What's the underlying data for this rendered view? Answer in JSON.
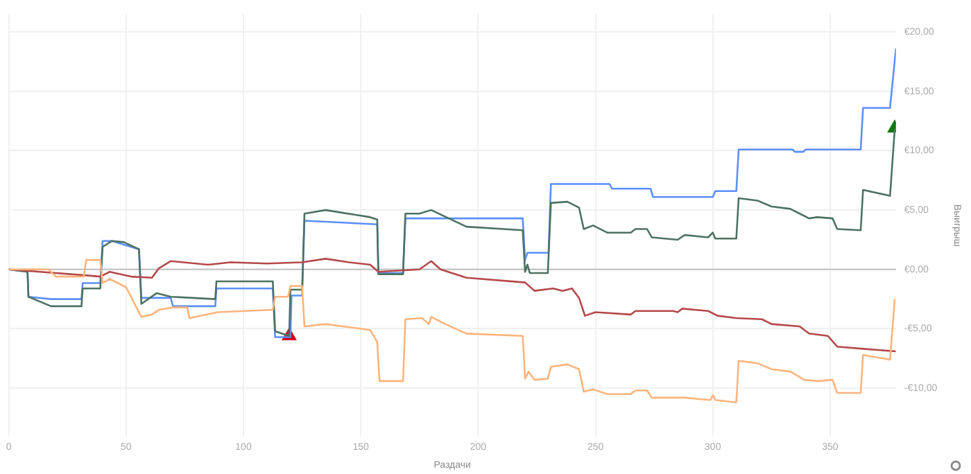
{
  "chart_data": {
    "type": "line",
    "xlabel": "Раздачи",
    "ylabel": "Выигрыш",
    "xlim": [
      0,
      378
    ],
    "xticks": [
      0,
      50,
      100,
      150,
      200,
      250,
      300,
      350
    ],
    "ylim": [
      -14.1,
      21.5
    ],
    "yticks": [
      {
        "value": -10,
        "label": "-€10,00"
      },
      {
        "value": -5,
        "label": "-€5,00"
      },
      {
        "value": 0,
        "label": "€0,00"
      },
      {
        "value": 5,
        "label": "€5,00"
      },
      {
        "value": 10,
        "label": "€10,00"
      },
      {
        "value": 15,
        "label": "€15,00"
      },
      {
        "value": 20,
        "label": "€20,00"
      }
    ],
    "grid": true,
    "legend": false,
    "marker": "none",
    "line_style": "solid",
    "ref_lines": [
      {
        "axis": "y",
        "value": 0,
        "color": "#c8c8c8"
      }
    ],
    "series": [
      {
        "color": "#fdb47c",
        "x": [
          0,
          17,
          20,
          32,
          33,
          39,
          40,
          43,
          50,
          56.5,
          61,
          64,
          70,
          76,
          77,
          89,
          112.5,
          113.5,
          119,
          120,
          125,
          126,
          135,
          154,
          157,
          158,
          168,
          169,
          176,
          179,
          180,
          186,
          195,
          219,
          220,
          221.5,
          224,
          229.7,
          231,
          238,
          243,
          245,
          249,
          255,
          265,
          267,
          272,
          274,
          285,
          288,
          299,
          300,
          301,
          310,
          311,
          319,
          325,
          333,
          339,
          345,
          351,
          353,
          363,
          364,
          375.5,
          377.5
        ],
        "values": [
          0,
          0,
          -0.6,
          -0.6,
          0.8,
          0.8,
          -1.15,
          -0.8,
          -1.5,
          -4.0,
          -3.8,
          -3.4,
          -3.2,
          -3.2,
          -4.1,
          -3.6,
          -3.4,
          -2.3,
          -2.3,
          -1.4,
          -1.4,
          -4.8,
          -4.6,
          -5.1,
          -6.1,
          -9.4,
          -9.4,
          -4.2,
          -4.1,
          -4.6,
          -4.0,
          -4.6,
          -5.4,
          -5.6,
          -9.2,
          -8.6,
          -9.3,
          -9.2,
          -8.2,
          -8.0,
          -8.4,
          -10.3,
          -10.1,
          -10.5,
          -10.5,
          -10.2,
          -10.2,
          -10.8,
          -10.8,
          -10.8,
          -11.0,
          -10.6,
          -11.0,
          -11.2,
          -7.7,
          -7.9,
          -8.4,
          -8.6,
          -9.3,
          -9.4,
          -9.3,
          -10.4,
          -10.4,
          -7.2,
          -7.6,
          -2.5
        ]
      },
      {
        "color": "#b5484a",
        "x": [
          0,
          33,
          39,
          43,
          52,
          61,
          64,
          69,
          85,
          94.5,
          110,
          125,
          135,
          145,
          154,
          157.5,
          175,
          180,
          184,
          195,
          220,
          224,
          232,
          236,
          240,
          243,
          245.5,
          250,
          265,
          267,
          283,
          285,
          287,
          298,
          302,
          310,
          321,
          325,
          337,
          341,
          349,
          353,
          365,
          378
        ],
        "values": [
          0,
          -0.5,
          -0.6,
          -0.2,
          -0.6,
          -0.7,
          0.1,
          0.7,
          0.4,
          0.6,
          0.5,
          0.6,
          0.9,
          0.6,
          0.4,
          -0.2,
          0,
          0.7,
          0,
          -0.7,
          -1.1,
          -1.8,
          -1.6,
          -1.8,
          -1.6,
          -2.4,
          -3.9,
          -3.6,
          -3.8,
          -3.5,
          -3.5,
          -3.6,
          -3.3,
          -3.5,
          -3.9,
          -4.1,
          -4.2,
          -4.6,
          -4.8,
          -5.4,
          -5.6,
          -6.5,
          -6.7,
          -6.9
        ]
      },
      {
        "color": "#4d7262",
        "x": [
          0,
          8,
          8.4,
          18,
          31,
          31.5,
          39,
          40,
          44,
          49,
          55.5,
          56.5,
          63,
          69,
          88,
          88.5,
          112.5,
          113.5,
          119.5,
          120,
          125,
          126,
          135,
          154,
          157,
          157.5,
          168,
          169,
          175,
          180,
          195,
          219,
          220,
          221,
          222,
          229.7,
          231,
          238,
          243,
          245,
          249,
          255,
          265,
          267,
          272,
          274,
          285,
          288,
          298,
          300,
          301,
          310,
          311,
          319,
          325,
          333,
          337,
          341,
          344.5,
          351,
          353,
          363,
          364,
          375.5,
          377.5
        ],
        "values": [
          0,
          -0.2,
          -2.3,
          -3.1,
          -3.1,
          -1.6,
          -1.6,
          1.9,
          2.4,
          2.3,
          1.7,
          -2.9,
          -2.0,
          -2.3,
          -2.5,
          -1.0,
          -1.0,
          -5.2,
          -5.6,
          -1.7,
          -1.7,
          4.7,
          5.0,
          4.4,
          4.2,
          -0.4,
          -0.4,
          4.7,
          4.7,
          5.0,
          3.6,
          3.3,
          -0.2,
          0.4,
          -0.3,
          -0.3,
          5.6,
          5.7,
          5.2,
          3.4,
          3.7,
          3.1,
          3.1,
          3.4,
          3.4,
          2.7,
          2.5,
          2.9,
          2.7,
          3.1,
          2.6,
          2.6,
          6.0,
          5.8,
          5.3,
          5.1,
          4.7,
          4.3,
          4.4,
          4.3,
          3.4,
          3.3,
          6.7,
          6.2,
          11.8
        ]
      },
      {
        "color": "#5b8ff9",
        "x": [
          0,
          8,
          8.4,
          18,
          31,
          31.5,
          39,
          40,
          44,
          55.5,
          56.5,
          69,
          70,
          88,
          88.5,
          112.5,
          113.5,
          120,
          120.5,
          125,
          126,
          157,
          157.5,
          168,
          169,
          175,
          219,
          220,
          221,
          230,
          231,
          256,
          257,
          273.5,
          274.5,
          300,
          301,
          310,
          311,
          334,
          335,
          338.5,
          339.5,
          363,
          364,
          375.5,
          378
        ],
        "values": [
          0,
          -0.2,
          -2.3,
          -2.5,
          -2.5,
          -1.15,
          -1.15,
          2.4,
          2.4,
          1.7,
          -2.4,
          -2.4,
          -3.1,
          -3.1,
          -1.6,
          -1.6,
          -5.7,
          -5.7,
          -2.2,
          -2.2,
          4.1,
          3.8,
          -0.3,
          -0.3,
          4.3,
          4.3,
          4.3,
          0.8,
          1.4,
          1.4,
          7.2,
          7.2,
          6.8,
          6.8,
          6.1,
          6.1,
          6.6,
          6.6,
          10.1,
          10.1,
          9.9,
          9.9,
          10.1,
          10.1,
          13.6,
          13.6,
          18.6
        ]
      },
      {
        "type": "scatter",
        "marker": "triangle",
        "color": "#d0021b",
        "x": [
          119.5
        ],
        "values": [
          -5.6
        ]
      },
      {
        "type": "scatter",
        "marker": "triangle",
        "color": "#127a12",
        "x": [
          377.5
        ],
        "values": [
          11.9
        ]
      }
    ]
  }
}
